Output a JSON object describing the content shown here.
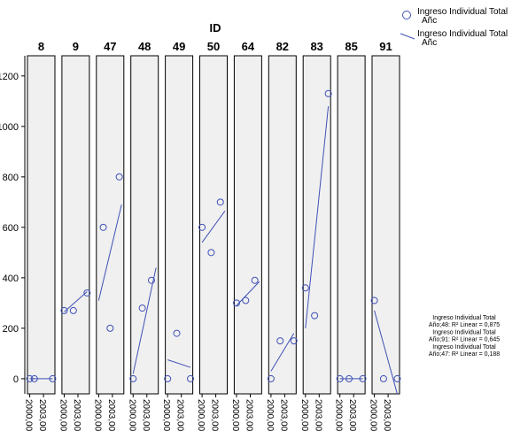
{
  "chart_data": {
    "type": "scatter",
    "title": "ID",
    "xlabel": "",
    "ylabel": "",
    "ylim": [
      -60,
      1280
    ],
    "xlim": [
      1999.5,
      2005.5
    ],
    "y_ticks": [
      0,
      200,
      400,
      600,
      800,
      1000,
      1200
    ],
    "x_ticks": [
      "2000,00",
      "2003,00"
    ],
    "grid": false,
    "facets": [
      {
        "id": "8",
        "points": [
          [
            2000,
            0
          ],
          [
            2001,
            0
          ],
          [
            2005,
            0
          ]
        ],
        "fit": [
          [
            2000,
            0
          ],
          [
            2005,
            0
          ]
        ]
      },
      {
        "id": "9",
        "points": [
          [
            2000,
            270
          ],
          [
            2002,
            270
          ],
          [
            2005,
            340
          ]
        ],
        "fit": [
          [
            2000,
            265
          ],
          [
            2005,
            345
          ]
        ]
      },
      {
        "id": "47",
        "points": [
          [
            2001,
            600
          ],
          [
            2002.5,
            200
          ],
          [
            2004.5,
            800
          ]
        ],
        "fit": [
          [
            2000,
            310
          ],
          [
            2005,
            690
          ]
        ]
      },
      {
        "id": "48",
        "points": [
          [
            2000,
            0
          ],
          [
            2002,
            280
          ],
          [
            2004,
            390
          ]
        ],
        "fit": [
          [
            2000,
            20
          ],
          [
            2005,
            440
          ]
        ]
      },
      {
        "id": "49",
        "points": [
          [
            2000,
            0
          ],
          [
            2002,
            180
          ],
          [
            2005,
            0
          ]
        ],
        "fit": [
          [
            2000,
            75
          ],
          [
            2005,
            45
          ]
        ]
      },
      {
        "id": "50",
        "points": [
          [
            2000,
            600
          ],
          [
            2002,
            500
          ],
          [
            2004,
            700
          ]
        ],
        "fit": [
          [
            2000,
            540
          ],
          [
            2005,
            665
          ]
        ]
      },
      {
        "id": "64",
        "points": [
          [
            2000,
            300
          ],
          [
            2002,
            310
          ],
          [
            2004,
            390
          ]
        ],
        "fit": [
          [
            2000,
            290
          ],
          [
            2005,
            385
          ]
        ]
      },
      {
        "id": "82",
        "points": [
          [
            2000,
            0
          ],
          [
            2002,
            150
          ],
          [
            2005,
            150
          ]
        ],
        "fit": [
          [
            2000,
            30
          ],
          [
            2005,
            180
          ]
        ]
      },
      {
        "id": "83",
        "points": [
          [
            2000,
            360
          ],
          [
            2002,
            250
          ],
          [
            2005,
            1130
          ]
        ],
        "fit": [
          [
            2000,
            200
          ],
          [
            2005,
            1080
          ]
        ]
      },
      {
        "id": "85",
        "points": [
          [
            2000,
            0
          ],
          [
            2002,
            0
          ],
          [
            2005,
            0
          ]
        ],
        "fit": [
          [
            2000,
            0
          ],
          [
            2005,
            0
          ]
        ]
      },
      {
        "id": "91",
        "points": [
          [
            2000,
            310
          ],
          [
            2002,
            0
          ],
          [
            2005,
            0
          ]
        ],
        "fit": [
          [
            2000,
            270
          ],
          [
            2005,
            -60
          ]
        ]
      }
    ],
    "legend": {
      "placement": "top-right",
      "entries": [
        {
          "symbol": "circle",
          "line1": "Ingreso Individual Total",
          "line2": "Añc"
        },
        {
          "symbol": "line",
          "line1": "Ingreso Individual Total",
          "line2": "Añc"
        }
      ]
    },
    "r2_annotations": [
      "Ingreso Individual Total",
      "Año;48: R² Linear = 0,875",
      "Ingreso Individual Total",
      "Año;91: R² Linear = 0,645",
      "Ingreso Individual Total",
      "Año;47: R² Linear = 0,188"
    ],
    "colors": {
      "marker": "#3f51b5",
      "fit_line": "#3f51b5",
      "panel_bg": "#f0f0f0",
      "panel_border": "#000000"
    }
  }
}
